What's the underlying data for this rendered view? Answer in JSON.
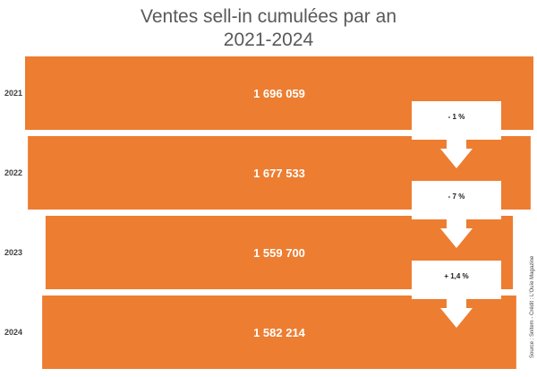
{
  "title_line1": "Ventes sell-in cumulées par an",
  "title_line2": "2021-2024",
  "source": "Source : Snitem - Crédit : L'Ouïe Magazine",
  "colors": {
    "bar": "#ed7d31",
    "bar_border": "#ffffff",
    "arrow_fill": "#ffffff"
  },
  "chart_data": {
    "type": "bar",
    "orientation": "horizontal",
    "title": "Ventes sell-in cumulées par an 2021-2024",
    "categories": [
      "2021",
      "2022",
      "2023",
      "2024"
    ],
    "values": [
      1696059,
      1677533,
      1559700,
      1582214
    ],
    "value_labels": [
      "1 696 059",
      "1 677 533",
      "1 559 700",
      "1 582 214"
    ],
    "changes": [
      "- 1 %",
      "- 7 %",
      "+ 1,4 %"
    ],
    "grid": false,
    "legend": "none"
  }
}
